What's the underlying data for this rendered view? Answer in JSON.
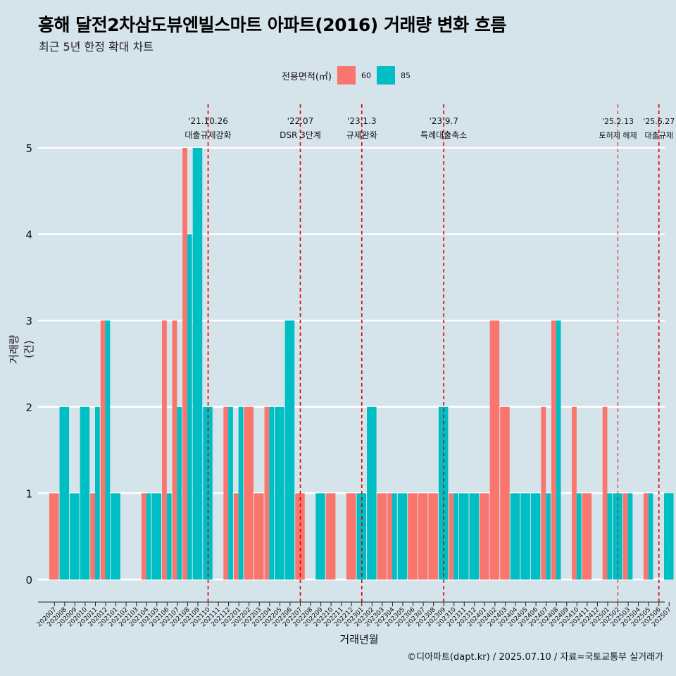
{
  "header": {
    "title": "흥해 달전2차삼도뷰엔빌스마트 아파트(2016) 거래량 변화 흐름",
    "subtitle": "최근 5년 한정 확대 차트"
  },
  "legend": {
    "title": "전용면적(㎡)",
    "items": [
      {
        "label": "60",
        "color": "#f8766d"
      },
      {
        "label": "85",
        "color": "#00bfc4"
      }
    ]
  },
  "caption": "©디아파트(dapt.kr) / 2025.07.10 / 자료=국토교통부 실거래가",
  "chart_data": {
    "type": "bar",
    "title": "흥해 달전2차삼도뷰엔빌스마트 아파트(2016) 거래량 변화 흐름",
    "xlabel": "거래년월",
    "ylabel": "거래량(건)",
    "ylim": [
      0,
      5
    ],
    "yticks": [
      0,
      1,
      2,
      3,
      4,
      5
    ],
    "grid": true,
    "legend_position": "top",
    "categories": [
      "202007",
      "202008",
      "202009",
      "202010",
      "202011",
      "202012",
      "202101",
      "202102",
      "202103",
      "202104",
      "202105",
      "202106",
      "202107",
      "202108",
      "202109",
      "202110",
      "202111",
      "202112",
      "202201",
      "202202",
      "202203",
      "202204",
      "202205",
      "202206",
      "202207",
      "202208",
      "202209",
      "202210",
      "202211",
      "202212",
      "202301",
      "202302",
      "202303",
      "202304",
      "202305",
      "202306",
      "202307",
      "202308",
      "202309",
      "202310",
      "202311",
      "202312",
      "202401",
      "202402",
      "202403",
      "202404",
      "202405",
      "202406",
      "202407",
      "202408",
      "202409",
      "202410",
      "202411",
      "202412",
      "202501",
      "202502",
      "202503",
      "202504",
      "202505",
      "202506",
      "202507"
    ],
    "series": [
      {
        "name": "60",
        "color": "#f8766d",
        "values": [
          1,
          0,
          0,
          0,
          1,
          3,
          0,
          0,
          0,
          1,
          0,
          3,
          3,
          5,
          0,
          0,
          0,
          2,
          1,
          2,
          1,
          2,
          0,
          0,
          1,
          0,
          0,
          1,
          0,
          1,
          0,
          0,
          1,
          1,
          0,
          1,
          1,
          1,
          0,
          1,
          0,
          0,
          1,
          3,
          2,
          0,
          0,
          0,
          2,
          3,
          0,
          2,
          1,
          0,
          2,
          0,
          1,
          0,
          1,
          0,
          0
        ]
      },
      {
        "name": "85",
        "color": "#00bfc4",
        "values": [
          0,
          2,
          1,
          2,
          2,
          3,
          1,
          0,
          0,
          1,
          1,
          1,
          2,
          4,
          5,
          2,
          0,
          2,
          2,
          0,
          0,
          2,
          2,
          3,
          0,
          0,
          1,
          0,
          0,
          0,
          1,
          2,
          0,
          1,
          1,
          0,
          0,
          0,
          2,
          1,
          1,
          1,
          0,
          0,
          0,
          1,
          1,
          1,
          1,
          3,
          0,
          1,
          0,
          0,
          1,
          1,
          1,
          0,
          1,
          0,
          1
        ]
      }
    ],
    "events": [
      {
        "date": "'21.10.26",
        "label": "대출규제강화",
        "after": "202110"
      },
      {
        "date": "'22.07",
        "label": "DSR 3단계",
        "after": "202207"
      },
      {
        "date": "'23.1.3",
        "label": "규제완화",
        "after": "202301"
      },
      {
        "date": "'23.9.7",
        "label": "특례대출축소",
        "after": "202309"
      },
      {
        "date": "'25.2.13",
        "label": "토허제 해제",
        "after": "202502"
      },
      {
        "date": "'25.6.27",
        "label": "대출규제",
        "after": "202506"
      }
    ]
  }
}
